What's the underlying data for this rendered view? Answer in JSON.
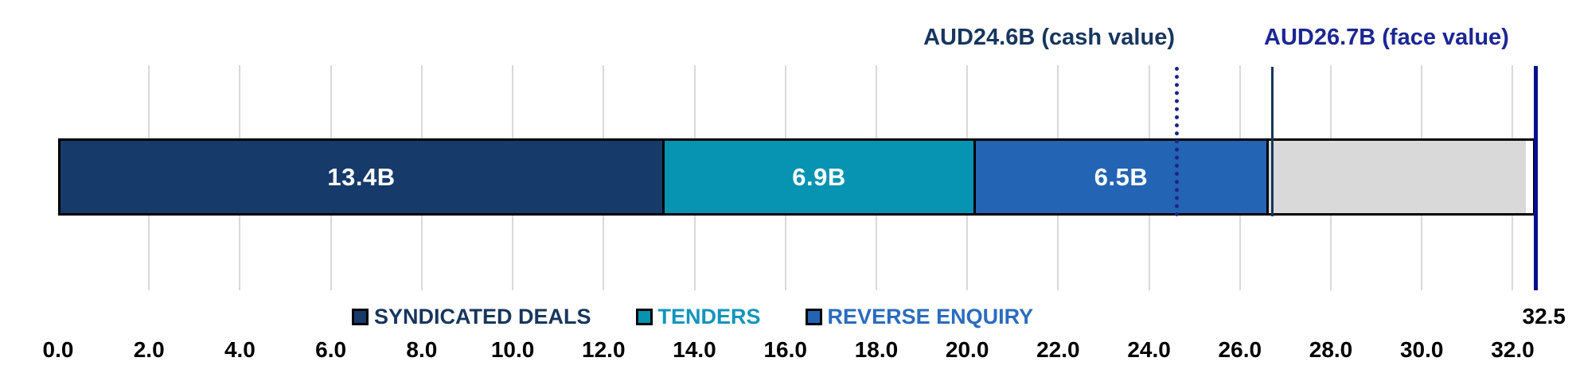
{
  "chart_data": {
    "type": "bar",
    "orientation": "horizontal-stacked",
    "units": "AUD billions",
    "title": "",
    "series": [
      {
        "name": "SYNDICATED DEALS",
        "value": 13.4,
        "bar_label": "13.4B",
        "color": "#163a69",
        "legend_text_color": "#17365d"
      },
      {
        "name": "TENDERS",
        "value": 6.9,
        "bar_label": "6.9B",
        "color": "#0793b2",
        "legend_text_color": "#1295bb"
      },
      {
        "name": "REVERSE ENQUIRY",
        "value": 6.5,
        "bar_label": "6.5B",
        "color": "#2364b4",
        "legend_text_color": "#2a6cbe"
      }
    ],
    "remainder_segment": {
      "name": "unissued-remainder",
      "end_value": 32.5,
      "bar_label": "",
      "color": "#d9d9d9"
    },
    "annotations": {
      "cash": {
        "label": "AUD24.6B (cash value)",
        "value": 24.6,
        "line_style": "dotted",
        "text_color": "#17365d",
        "line_color": "#1f2584"
      },
      "face": {
        "label": "AUD26.7B (face value)",
        "value": 26.7,
        "line_style": "solid",
        "text_color": "#1c2694",
        "line_color": "#17365d"
      },
      "total": {
        "label": "32.5",
        "value": 32.5,
        "line_style": "solid",
        "text_color": "#000000",
        "line_color": "#060f8c"
      }
    },
    "x_axis": {
      "min": 0,
      "max": 32.5,
      "tick_values": [
        0,
        2,
        4,
        6,
        8,
        10,
        12,
        14,
        16,
        18,
        20,
        22,
        24,
        26,
        28,
        30,
        32
      ],
      "tick_labels": [
        "0.0",
        "2.0",
        "4.0",
        "6.0",
        "8.0",
        "10.0",
        "12.0",
        "14.0",
        "16.0",
        "18.0",
        "20.0",
        "22.0",
        "24.0",
        "26.0",
        "28.0",
        "30.0",
        "32.0"
      ],
      "end_label": "32.5",
      "gridlines": true,
      "gridline_color": "#d9d9d9"
    },
    "legend_position": "bottom-center",
    "bar_border_color": "#000000",
    "bar_value_text_color": "#ffffff"
  }
}
